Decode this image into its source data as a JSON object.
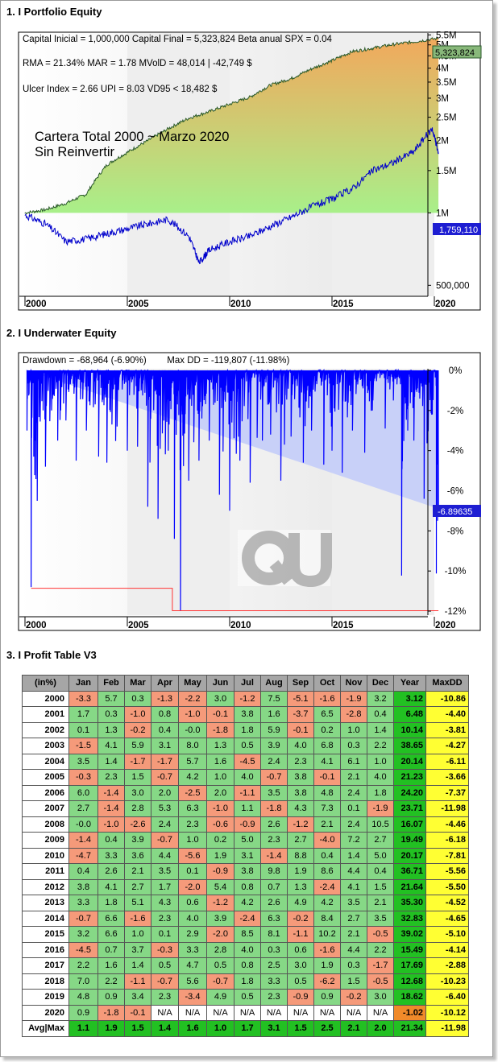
{
  "sections": [
    {
      "title": "1. I Portfolio Equity"
    },
    {
      "title": "2. I Underwater Equity"
    },
    {
      "title": "3. I Profit Table V3"
    }
  ],
  "equity_chart": {
    "info_lines": [
      "Capital Inicial = 1,000,000  Capital Final = 5,323,824  Beta anual SPX = 0.04",
      "RMA = 21.34%   MAR = 1.78   MVolD = 48,014 | -42,749 $",
      "Ulcer Index = 2.66   UPI = 8.03   VD95 < 18,482 $"
    ],
    "overlay_title_1": "Cartera Total 2000 ~ Marzo 2020",
    "overlay_title_2": "Sin Reinvertir",
    "last_value_label": "5,323,824",
    "benchmark_label": "1,759,110",
    "colors": {
      "fill_top": "#f2a85c",
      "fill_bottom": "#a8f08a",
      "benchmark": "#0000cc",
      "equity_line": "#2a5a2a"
    }
  },
  "underwater_chart": {
    "info_line": "Drawdown = -68,964 (-6.90%)        Max DD = -119,807 (-11.98%)",
    "last_value_label": "-6.89635",
    "colors": {
      "drawdown": "#0000ff",
      "max_line": "#ff3333"
    }
  },
  "chart_data": [
    {
      "type": "line",
      "title": "",
      "x_ticks": [
        "2000",
        "2005",
        "2010",
        "2015",
        "2020"
      ],
      "y_ticks": [
        "500,000",
        "1M",
        "1.5M",
        "2M",
        "2.5M",
        "3M",
        "3.5M",
        "4M",
        "4.5M",
        "5M",
        "5.5M"
      ],
      "ylim": [
        450000,
        5600000
      ],
      "series": [
        {
          "x": [
            2000,
            2001,
            2002,
            2003,
            2004,
            2005,
            2006,
            2007,
            2008,
            2009,
            2010,
            2011,
            2012,
            2013,
            2014,
            2015,
            2016,
            2017,
            2018,
            2019,
            2020.2
          ],
          "values": [
            1000000,
            1031200,
            1096000,
            1197400,
            1583900,
            1785300,
            1997600,
            2239600,
            2476700,
            2637400,
            2832300,
            3034000,
            3401100,
            3617500,
            3970500,
            4298800,
            4689000,
            4843900,
            5020800,
            5147600,
            5323824
          ]
        },
        {
          "x": [
            2000,
            2001,
            2002,
            2003,
            2004,
            2005,
            2006,
            2007,
            2008,
            2008.5,
            2009,
            2010,
            2011,
            2012,
            2013,
            2014,
            2015,
            2016,
            2017,
            2018,
            2019,
            2019.9,
            2020.2
          ],
          "values": [
            980000,
            900000,
            760000,
            780000,
            820000,
            860000,
            900000,
            940000,
            800000,
            620000,
            700000,
            760000,
            800000,
            880000,
            960000,
            1060000,
            1140000,
            1260000,
            1500000,
            1620000,
            1800000,
            2240000,
            1759110
          ]
        }
      ]
    },
    {
      "type": "area",
      "title": "",
      "x_ticks": [
        "2000",
        "2005",
        "2010",
        "2015",
        "2020"
      ],
      "y_ticks": [
        "0%",
        "-2%",
        "-4%",
        "-6%",
        "-8%",
        "-10%",
        "-12%"
      ],
      "ylim": [
        -12.2,
        0
      ],
      "series": [
        {
          "x": [
            2000.1,
            2000.3,
            2000.6,
            2001.0,
            2001.6,
            2002.0,
            2002.5,
            2003.0,
            2003.6,
            2004.0,
            2004.5,
            2005.0,
            2005.5,
            2006.0,
            2006.5,
            2007.0,
            2007.3,
            2007.6,
            2008.0,
            2008.5,
            2009.0,
            2009.5,
            2010.0,
            2010.5,
            2011.0,
            2011.6,
            2012.0,
            2012.5,
            2013.0,
            2013.6,
            2014.0,
            2014.6,
            2015.0,
            2015.5,
            2016.0,
            2016.6,
            2017.0,
            2017.6,
            2018.0,
            2018.4,
            2018.7,
            2019.0,
            2019.5,
            2019.9,
            2020.1,
            2020.2
          ],
          "values": [
            -3.0,
            -10.8,
            -6.5,
            -4.8,
            -3.5,
            -2.5,
            -4.5,
            -3.0,
            -4.3,
            -4.6,
            -2.8,
            -4.0,
            -3.8,
            -6.8,
            -7.4,
            -4.0,
            -8.4,
            -11.98,
            -5.5,
            -4.5,
            -3.5,
            -6.2,
            -7.0,
            -4.5,
            -5.6,
            -3.5,
            -3.2,
            -5.5,
            -3.3,
            -4.6,
            -3.0,
            -4.7,
            -4.0,
            -5.1,
            -3.0,
            -4.1,
            -1.5,
            -2.9,
            -1.5,
            -10.23,
            -3.0,
            -3.5,
            -6.4,
            -2.2,
            -10.12,
            -6.9
          ]
        },
        {
          "name": "Max DD",
          "x": [
            2000.3,
            2007.2,
            2007.2,
            2020.2
          ],
          "values": [
            -10.86,
            -10.86,
            -11.98,
            -11.98
          ]
        }
      ]
    },
    {
      "type": "table",
      "title": "",
      "columns": [
        "(in%)",
        "Jan",
        "Feb",
        "Mar",
        "Apr",
        "May",
        "Jun",
        "Jul",
        "Aug",
        "Sep",
        "Oct",
        "Nov",
        "Dec",
        "Year",
        "MaxDD"
      ],
      "rows": [
        [
          "2000",
          "-3.3",
          "5.7",
          "0.3",
          "-1.3",
          "-2.2",
          "3.0",
          "-1.2",
          "7.5",
          "-5.1",
          "-1.6",
          "-1.9",
          "3.2",
          "3.12",
          "-10.86"
        ],
        [
          "2001",
          "1.7",
          "0.3",
          "-1.0",
          "0.8",
          "-1.0",
          "-0.1",
          "3.8",
          "1.6",
          "-3.7",
          "6.5",
          "-2.8",
          "0.4",
          "6.48",
          "-4.40"
        ],
        [
          "2002",
          "0.1",
          "1.3",
          "-0.2",
          "0.4",
          "-0.0",
          "-1.8",
          "1.8",
          "5.9",
          "-0.1",
          "0.2",
          "1.0",
          "1.4",
          "10.14",
          "-3.81"
        ],
        [
          "2003",
          "-1.5",
          "4.1",
          "5.9",
          "3.1",
          "8.0",
          "1.3",
          "0.5",
          "3.9",
          "4.0",
          "6.8",
          "0.3",
          "2.2",
          "38.65",
          "-4.27"
        ],
        [
          "2004",
          "3.5",
          "1.4",
          "-1.7",
          "-1.7",
          "5.7",
          "1.6",
          "-4.5",
          "2.4",
          "2.3",
          "4.1",
          "6.1",
          "1.0",
          "20.14",
          "-6.11"
        ],
        [
          "2005",
          "-0.3",
          "2.3",
          "1.5",
          "-0.7",
          "4.2",
          "1.0",
          "4.0",
          "-0.7",
          "3.8",
          "-0.1",
          "2.1",
          "4.0",
          "21.23",
          "-3.66"
        ],
        [
          "2006",
          "6.0",
          "-1.4",
          "3.0",
          "2.0",
          "-2.5",
          "2.0",
          "-1.1",
          "3.5",
          "3.8",
          "4.8",
          "2.4",
          "1.8",
          "24.20",
          "-7.37"
        ],
        [
          "2007",
          "2.7",
          "-1.4",
          "2.8",
          "5.3",
          "6.3",
          "-1.0",
          "1.1",
          "-1.8",
          "4.3",
          "7.3",
          "0.1",
          "-1.9",
          "23.71",
          "-11.98"
        ],
        [
          "2008",
          "-0.0",
          "-1.0",
          "-2.6",
          "2.4",
          "2.3",
          "-0.6",
          "-0.9",
          "2.6",
          "-1.2",
          "2.1",
          "2.4",
          "10.5",
          "16.07",
          "-4.46"
        ],
        [
          "2009",
          "-1.4",
          "0.4",
          "3.9",
          "-0.7",
          "1.0",
          "0.2",
          "5.0",
          "2.3",
          "2.7",
          "-4.0",
          "7.2",
          "2.7",
          "19.49",
          "-6.18"
        ],
        [
          "2010",
          "-4.7",
          "3.3",
          "3.6",
          "4.4",
          "-5.6",
          "1.9",
          "3.1",
          "-1.4",
          "8.8",
          "0.4",
          "1.4",
          "5.0",
          "20.17",
          "-7.81"
        ],
        [
          "2011",
          "0.4",
          "2.6",
          "2.1",
          "3.5",
          "0.1",
          "-0.9",
          "3.8",
          "9.8",
          "1.9",
          "8.6",
          "4.4",
          "0.4",
          "36.71",
          "-5.56"
        ],
        [
          "2012",
          "3.8",
          "4.1",
          "2.7",
          "1.7",
          "-2.0",
          "5.4",
          "0.8",
          "0.7",
          "1.3",
          "-2.4",
          "4.1",
          "1.5",
          "21.64",
          "-5.50"
        ],
        [
          "2013",
          "3.3",
          "1.8",
          "5.1",
          "4.3",
          "0.6",
          "-1.2",
          "4.2",
          "2.6",
          "4.9",
          "4.2",
          "3.5",
          "2.1",
          "35.30",
          "-4.52"
        ],
        [
          "2014",
          "-0.7",
          "6.6",
          "-1.6",
          "2.3",
          "4.0",
          "3.9",
          "-2.4",
          "6.3",
          "-0.2",
          "8.4",
          "2.7",
          "3.5",
          "32.83",
          "-4.65"
        ],
        [
          "2015",
          "3.2",
          "6.6",
          "1.0",
          "0.1",
          "2.9",
          "-2.0",
          "8.5",
          "8.1",
          "-1.1",
          "10.2",
          "2.1",
          "-0.5",
          "39.02",
          "-5.10"
        ],
        [
          "2016",
          "-4.5",
          "0.7",
          "3.7",
          "-0.3",
          "3.3",
          "2.8",
          "4.0",
          "0.3",
          "0.6",
          "-1.6",
          "4.4",
          "2.2",
          "15.49",
          "-4.14"
        ],
        [
          "2017",
          "2.2",
          "1.6",
          "1.4",
          "0.5",
          "4.7",
          "0.5",
          "0.8",
          "2.5",
          "3.0",
          "1.9",
          "0.3",
          "-1.7",
          "17.69",
          "-2.88"
        ],
        [
          "2018",
          "7.0",
          "2.2",
          "-1.1",
          "-0.7",
          "5.6",
          "-0.7",
          "1.8",
          "3.3",
          "0.5",
          "-6.2",
          "1.5",
          "-0.5",
          "12.68",
          "-10.23"
        ],
        [
          "2019",
          "4.8",
          "0.9",
          "3.4",
          "2.3",
          "-3.4",
          "4.9",
          "0.5",
          "2.3",
          "-0.9",
          "0.9",
          "-0.2",
          "3.0",
          "18.62",
          "-6.40"
        ],
        [
          "2020",
          "0.9",
          "-1.8",
          "-0.1",
          "N/A",
          "N/A",
          "N/A",
          "N/A",
          "N/A",
          "N/A",
          "N/A",
          "N/A",
          "N/A",
          "-1.02",
          "-10.12"
        ],
        [
          "Avg|Max",
          "1.1",
          "1.9",
          "1.5",
          "1.4",
          "1.6",
          "1.0",
          "1.7",
          "3.1",
          "1.5",
          "2.5",
          "2.1",
          "2.0",
          "21.34",
          "-11.98"
        ]
      ]
    }
  ]
}
